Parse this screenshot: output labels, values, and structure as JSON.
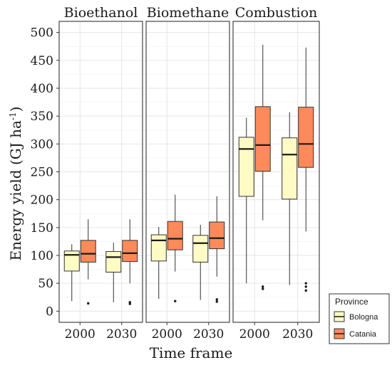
{
  "chart_data": {
    "type": "boxplot",
    "ylabel": "Energy yield (GJ ha",
    "ylabel_sup": "-1",
    "ylabel_close": ")",
    "xlabel": "Time frame",
    "ylim": [
      -20,
      520
    ],
    "y_ticks": [
      0,
      50,
      100,
      150,
      200,
      250,
      300,
      350,
      400,
      450,
      500
    ],
    "grid": true,
    "facets": [
      "Bioethanol",
      "Biomethane",
      "Combustion"
    ],
    "categories": [
      "2000",
      "2030"
    ],
    "legend": {
      "title": "Province",
      "position": "bottom-right",
      "entries": [
        {
          "name": "Bologna",
          "color": "#fffbc5"
        },
        {
          "name": "Catania",
          "color": "#fc8a5a"
        }
      ]
    },
    "boxes": [
      {
        "facet": "Bioethanol",
        "x": "2000",
        "group": "Bologna",
        "min": 18,
        "q1": 72,
        "median": 101,
        "q3": 108,
        "max": 120,
        "outliers": []
      },
      {
        "facet": "Bioethanol",
        "x": "2000",
        "group": "Catania",
        "min": 57,
        "q1": 88,
        "median": 103,
        "q3": 127,
        "max": 165,
        "outliers": [
          14
        ]
      },
      {
        "facet": "Bioethanol",
        "x": "2030",
        "group": "Bologna",
        "min": 16,
        "q1": 70,
        "median": 97,
        "q3": 107,
        "max": 123,
        "outliers": []
      },
      {
        "facet": "Bioethanol",
        "x": "2030",
        "group": "Catania",
        "min": 50,
        "q1": 89,
        "median": 104,
        "q3": 127,
        "max": 165,
        "outliers": [
          13,
          16
        ]
      },
      {
        "facet": "Biomethane",
        "x": "2000",
        "group": "Bologna",
        "min": 22,
        "q1": 90,
        "median": 127,
        "q3": 137,
        "max": 151,
        "outliers": []
      },
      {
        "facet": "Biomethane",
        "x": "2000",
        "group": "Catania",
        "min": 71,
        "q1": 110,
        "median": 130,
        "q3": 161,
        "max": 209,
        "outliers": [
          18
        ]
      },
      {
        "facet": "Biomethane",
        "x": "2030",
        "group": "Bologna",
        "min": 20,
        "q1": 88,
        "median": 122,
        "q3": 136,
        "max": 155,
        "outliers": []
      },
      {
        "facet": "Biomethane",
        "x": "2030",
        "group": "Catania",
        "min": 62,
        "q1": 112,
        "median": 131,
        "q3": 160,
        "max": 206,
        "outliers": [
          17,
          21
        ]
      },
      {
        "facet": "Combustion",
        "x": "2000",
        "group": "Bologna",
        "min": 50,
        "q1": 206,
        "median": 291,
        "q3": 312,
        "max": 347,
        "outliers": []
      },
      {
        "facet": "Combustion",
        "x": "2000",
        "group": "Catania",
        "min": 163,
        "q1": 251,
        "median": 298,
        "q3": 367,
        "max": 478,
        "outliers": [
          40,
          44
        ]
      },
      {
        "facet": "Combustion",
        "x": "2030",
        "group": "Bologna",
        "min": 47,
        "q1": 201,
        "median": 281,
        "q3": 311,
        "max": 357,
        "outliers": []
      },
      {
        "facet": "Combustion",
        "x": "2030",
        "group": "Catania",
        "min": 143,
        "q1": 258,
        "median": 300,
        "q3": 366,
        "max": 473,
        "outliers": [
          37,
          44,
          50
        ]
      }
    ]
  }
}
